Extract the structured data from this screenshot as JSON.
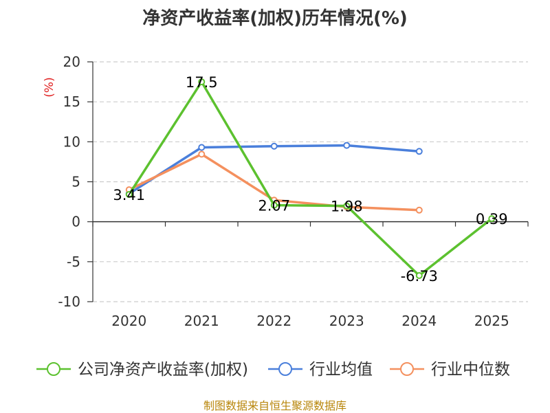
{
  "chart_data": {
    "type": "line",
    "title": "净资产收益率(加权)历年情况(%)",
    "ylabel": "(%)",
    "xlabel": "",
    "categories": [
      "2020",
      "2021",
      "2022",
      "2023",
      "2024",
      "2025"
    ],
    "ylim": [
      -10,
      20
    ],
    "yticks": [
      -10,
      -5,
      0,
      5,
      10,
      15,
      20
    ],
    "grid": true,
    "legend_position": "bottom",
    "series": [
      {
        "name": "公司净资产收益率(加权)",
        "color": "#5cc12f",
        "values": [
          3.41,
          17.5,
          2.07,
          1.98,
          -6.73,
          0.39
        ],
        "labels": [
          "3.41",
          "17.5",
          "2.07",
          "1.98",
          "-6.73",
          "0.39"
        ]
      },
      {
        "name": "行业均值",
        "color": "#4a7fdb",
        "values": [
          3.5,
          9.3,
          9.45,
          9.55,
          8.8,
          null
        ]
      },
      {
        "name": "行业中位数",
        "color": "#f4905e",
        "values": [
          4.0,
          8.45,
          2.7,
          1.85,
          1.45,
          null
        ]
      }
    ]
  },
  "footer": {
    "source": "制图数据来自恒生聚源数据库"
  }
}
